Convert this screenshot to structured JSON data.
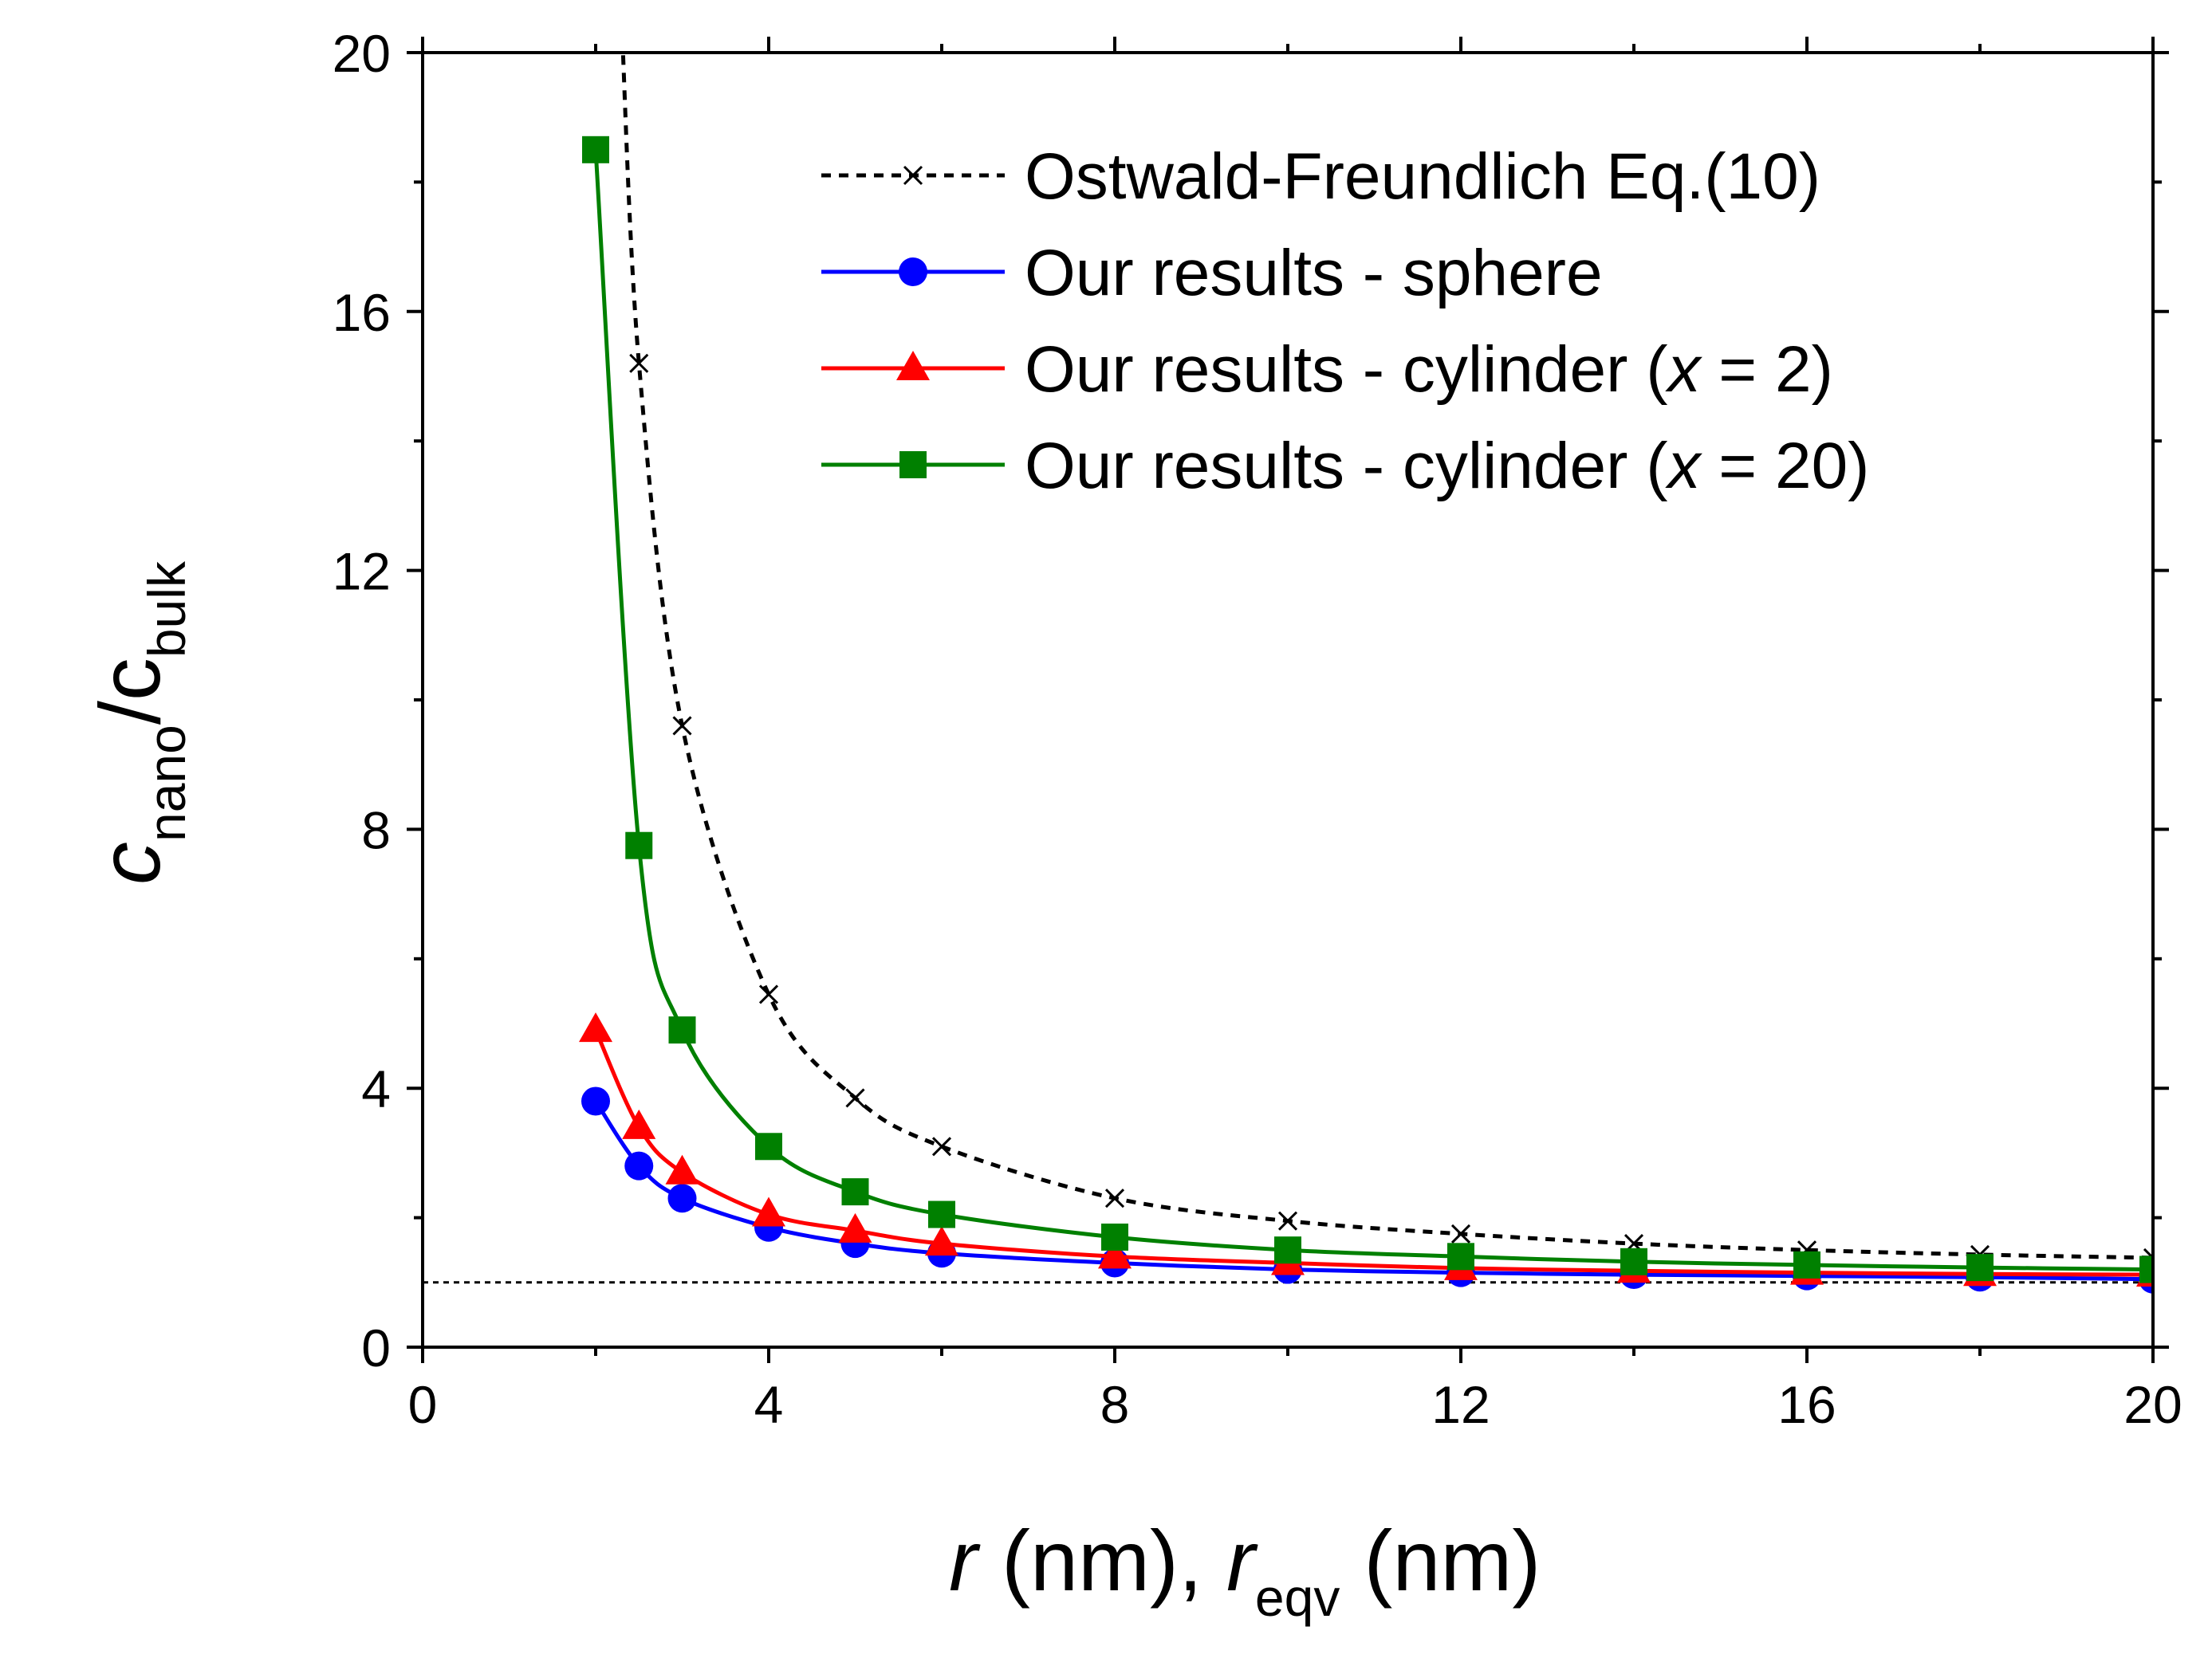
{
  "chart_data": {
    "type": "line",
    "title": "",
    "xlabel": {
      "main": "r",
      "middle": " (nm), ",
      "main2": "r",
      "sub": "eqv",
      "tail": " (nm)"
    },
    "ylabel": {
      "part1": "c",
      "sub1": "nano",
      "slash": "/c",
      "sub2": "bulk"
    },
    "xlim": [
      0,
      20
    ],
    "ylim": [
      0,
      20
    ],
    "x_ticks": [
      0,
      4,
      8,
      12,
      16,
      20
    ],
    "y_ticks": [
      0,
      4,
      8,
      12,
      16,
      20
    ],
    "x_tick_labels": [
      "0",
      "4",
      "8",
      "12",
      "16",
      "20"
    ],
    "y_tick_labels": [
      "0",
      "4",
      "8",
      "12",
      "16",
      "20"
    ],
    "legend_position": "top-right",
    "reference_line": {
      "y": 1,
      "style": "dotted",
      "color": "#000000"
    },
    "series": [
      {
        "name": "Ostwald-Freundlich Eq.(10)",
        "color": "#000000",
        "marker": "cross",
        "line_style": "dashed",
        "x": [
          2.5,
          3,
          4,
          5,
          6,
          8,
          10,
          12,
          14,
          16,
          18,
          20
        ],
        "y": [
          15.2,
          9.6,
          5.45,
          3.85,
          3.1,
          2.3,
          1.95,
          1.75,
          1.6,
          1.5,
          1.43,
          1.38
        ]
      },
      {
        "name": "Our results - sphere",
        "color": "#0000ff",
        "marker": "circle",
        "line_style": "solid",
        "x": [
          2,
          2.5,
          3,
          4,
          5,
          6,
          8,
          10,
          12,
          14,
          16,
          18,
          20
        ],
        "y": [
          3.8,
          2.8,
          2.3,
          1.85,
          1.6,
          1.45,
          1.3,
          1.2,
          1.15,
          1.12,
          1.1,
          1.08,
          1.05
        ]
      },
      {
        "name": "Our results - cylinder (x = 2)",
        "color": "#ff0000",
        "marker": "triangle",
        "line_style": "solid",
        "x": [
          2,
          2.5,
          3,
          4,
          5,
          6,
          8,
          10,
          12,
          14,
          16,
          18,
          20
        ],
        "y": [
          4.9,
          3.4,
          2.7,
          2.05,
          1.8,
          1.6,
          1.4,
          1.3,
          1.22,
          1.18,
          1.15,
          1.13,
          1.12
        ]
      },
      {
        "name": "Our results - cylinder (x = 20)",
        "color": "#008000",
        "marker": "square",
        "line_style": "solid",
        "x": [
          2,
          2.5,
          3,
          4,
          5,
          6,
          8,
          10,
          12,
          14,
          16,
          18,
          20
        ],
        "y": [
          18.5,
          7.75,
          4.9,
          3.1,
          2.4,
          2.05,
          1.7,
          1.5,
          1.4,
          1.32,
          1.27,
          1.23,
          1.2
        ]
      }
    ],
    "legend": [
      {
        "prefix": "Ostwald-Freundlich Eq.(10)",
        "italic": "",
        "suffix": ""
      },
      {
        "prefix": "Our results - sphere",
        "italic": "",
        "suffix": ""
      },
      {
        "prefix": "Our results - cylinder (",
        "italic": "x",
        "suffix": " = 2)"
      },
      {
        "prefix": "Our results - cylinder (",
        "italic": "x",
        "suffix": " = 20)"
      }
    ]
  }
}
